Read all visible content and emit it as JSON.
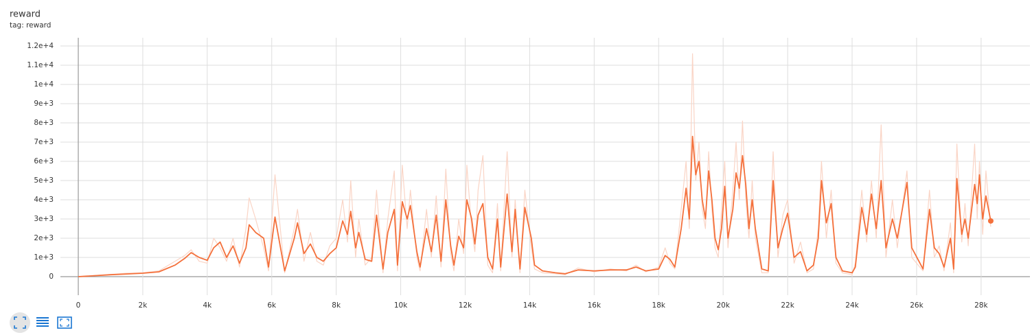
{
  "chart_data": {
    "type": "line",
    "title": "reward",
    "subtitle": "tag: reward",
    "x": [
      0,
      500,
      1000,
      1500,
      2000,
      2500,
      3000,
      3300,
      3500,
      3750,
      4000,
      4200,
      4400,
      4600,
      4800,
      5000,
      5200,
      5300,
      5500,
      5750,
      5900,
      6100,
      6400,
      6700,
      6800,
      7000,
      7200,
      7400,
      7600,
      7800,
      8000,
      8200,
      8350,
      8450,
      8600,
      8700,
      8900,
      9100,
      9250,
      9450,
      9600,
      9800,
      9900,
      10050,
      10200,
      10300,
      10500,
      10600,
      10800,
      10950,
      11100,
      11250,
      11400,
      11550,
      11650,
      11800,
      11950,
      12050,
      12200,
      12300,
      12400,
      12550,
      12700,
      12850,
      13000,
      13100,
      13300,
      13450,
      13550,
      13700,
      13850,
      14050,
      14150,
      14400,
      14800,
      15100,
      15500,
      16000,
      16500,
      17000,
      17300,
      17600,
      18000,
      18200,
      18350,
      18500,
      18700,
      18850,
      18950,
      19050,
      19150,
      19250,
      19350,
      19450,
      19550,
      19650,
      19750,
      19850,
      19950,
      20050,
      20150,
      20300,
      20400,
      20500,
      20600,
      20700,
      20800,
      20900,
      21000,
      21200,
      21400,
      21550,
      21700,
      21850,
      22000,
      22200,
      22400,
      22600,
      22800,
      22950,
      23050,
      23200,
      23350,
      23500,
      23700,
      24000,
      24100,
      24300,
      24450,
      24600,
      24750,
      24900,
      25050,
      25250,
      25400,
      25700,
      25850,
      26200,
      26400,
      26550,
      26700,
      26850,
      27050,
      27150,
      27250,
      27400,
      27500,
      27600,
      27800,
      27880,
      27950,
      28050,
      28150,
      28300
    ],
    "series": [
      {
        "color": "#fad4c5",
        "values": [
          0,
          60,
          120,
          180,
          200,
          300,
          800,
          1100,
          1400,
          800,
          700,
          2000,
          1500,
          800,
          2000,
          500,
          2500,
          4100,
          3000,
          1500,
          300,
          5300,
          200,
          2500,
          3500,
          800,
          2300,
          800,
          600,
          1600,
          2000,
          4000,
          1800,
          5000,
          1000,
          3000,
          600,
          1000,
          4500,
          200,
          3000,
          5500,
          300,
          5800,
          2500,
          4500,
          1000,
          300,
          3500,
          1000,
          4200,
          500,
          5600,
          1200,
          300,
          3000,
          1200,
          5800,
          2500,
          1300,
          4500,
          6300,
          600,
          200,
          3800,
          300,
          6500,
          1000,
          4000,
          200,
          4500,
          1500,
          400,
          200,
          150,
          100,
          450,
          250,
          400,
          300,
          600,
          250,
          500,
          1500,
          700,
          400,
          3500,
          6000,
          2500,
          11600,
          5000,
          7000,
          3500,
          2500,
          6500,
          3500,
          1500,
          1000,
          3500,
          6000,
          1500,
          4500,
          7000,
          4000,
          8100,
          4000,
          2000,
          5000,
          2000,
          200,
          200,
          6500,
          1000,
          3200,
          4000,
          700,
          1800,
          200,
          400,
          2500,
          6000,
          2000,
          4500,
          700,
          200,
          100,
          700,
          4500,
          1800,
          5000,
          2000,
          7900,
          1000,
          4000,
          1500,
          5500,
          1000,
          300,
          4500,
          1000,
          1600,
          300,
          2800,
          200,
          6900,
          1800,
          3800,
          1600,
          6900,
          3000,
          6000,
          2200,
          5500,
          2600
        ]
      },
      {
        "color": "#f4703b",
        "values": [
          0,
          50,
          100,
          140,
          180,
          250,
          600,
          950,
          1250,
          1000,
          850,
          1500,
          1800,
          1000,
          1600,
          700,
          1500,
          2700,
          2300,
          2000,
          500,
          3100,
          300,
          2000,
          2800,
          1200,
          1700,
          1000,
          800,
          1200,
          1500,
          2900,
          2200,
          3400,
          1500,
          2300,
          900,
          800,
          3200,
          400,
          2300,
          3500,
          600,
          3900,
          3000,
          3700,
          1300,
          500,
          2500,
          1300,
          3200,
          800,
          4000,
          1600,
          600,
          2100,
          1500,
          4000,
          3000,
          1700,
          3200,
          3800,
          1000,
          400,
          3000,
          500,
          4300,
          1300,
          3500,
          400,
          3600,
          2000,
          600,
          300,
          200,
          150,
          350,
          300,
          350,
          350,
          500,
          300,
          400,
          1100,
          900,
          500,
          2500,
          4600,
          3000,
          7300,
          5300,
          6000,
          4000,
          3000,
          5500,
          4000,
          2000,
          1400,
          2500,
          4700,
          2000,
          3500,
          5400,
          4600,
          6300,
          4800,
          2500,
          4000,
          2500,
          400,
          300,
          5000,
          1500,
          2500,
          3300,
          1000,
          1300,
          300,
          600,
          2000,
          5000,
          2800,
          3800,
          1000,
          300,
          200,
          500,
          3600,
          2200,
          4300,
          2500,
          5000,
          1500,
          3000,
          2000,
          4900,
          1500,
          400,
          3500,
          1500,
          1200,
          500,
          2000,
          400,
          5100,
          2200,
          3000,
          2000,
          4800,
          3800,
          5300,
          3000,
          4200,
          2900
        ]
      }
    ],
    "xlim": [
      -554,
      29515
    ],
    "xticks": [
      0,
      {
        "value": 2000,
        "label": "2k"
      },
      {
        "value": 4000,
        "label": "4k"
      },
      {
        "value": 6000,
        "label": "6k"
      },
      {
        "value": 8000,
        "label": "8k"
      },
      {
        "value": 10000,
        "label": "10k"
      },
      {
        "value": 12000,
        "label": "12k"
      },
      {
        "value": 14000,
        "label": "14k"
      },
      {
        "value": 16000,
        "label": "16k"
      },
      {
        "value": 18000,
        "label": "18k"
      },
      {
        "value": 20000,
        "label": "20k"
      },
      {
        "value": 22000,
        "label": "22k"
      },
      {
        "value": 24000,
        "label": "24k"
      },
      {
        "value": 26000,
        "label": "26k"
      },
      {
        "value": 28000,
        "label": "28k"
      }
    ],
    "ylim": [
      -964,
      12430
    ],
    "yticks": [
      0,
      {
        "value": 1000,
        "label": "1e+3"
      },
      {
        "value": 2000,
        "label": "2e+3"
      },
      {
        "value": 3000,
        "label": "3e+3"
      },
      {
        "value": 4000,
        "label": "4e+3"
      },
      {
        "value": 5000,
        "label": "5e+3"
      },
      {
        "value": 6000,
        "label": "6e+3"
      },
      {
        "value": 7000,
        "label": "7e+3"
      },
      {
        "value": 8000,
        "label": "8e+3"
      },
      {
        "value": 9000,
        "label": "9e+3"
      },
      {
        "value": 10000,
        "label": "1e+4"
      },
      {
        "value": 11000,
        "label": "1.1e+4"
      },
      {
        "value": 12000,
        "label": "1.2e+4"
      }
    ],
    "grid": true
  }
}
